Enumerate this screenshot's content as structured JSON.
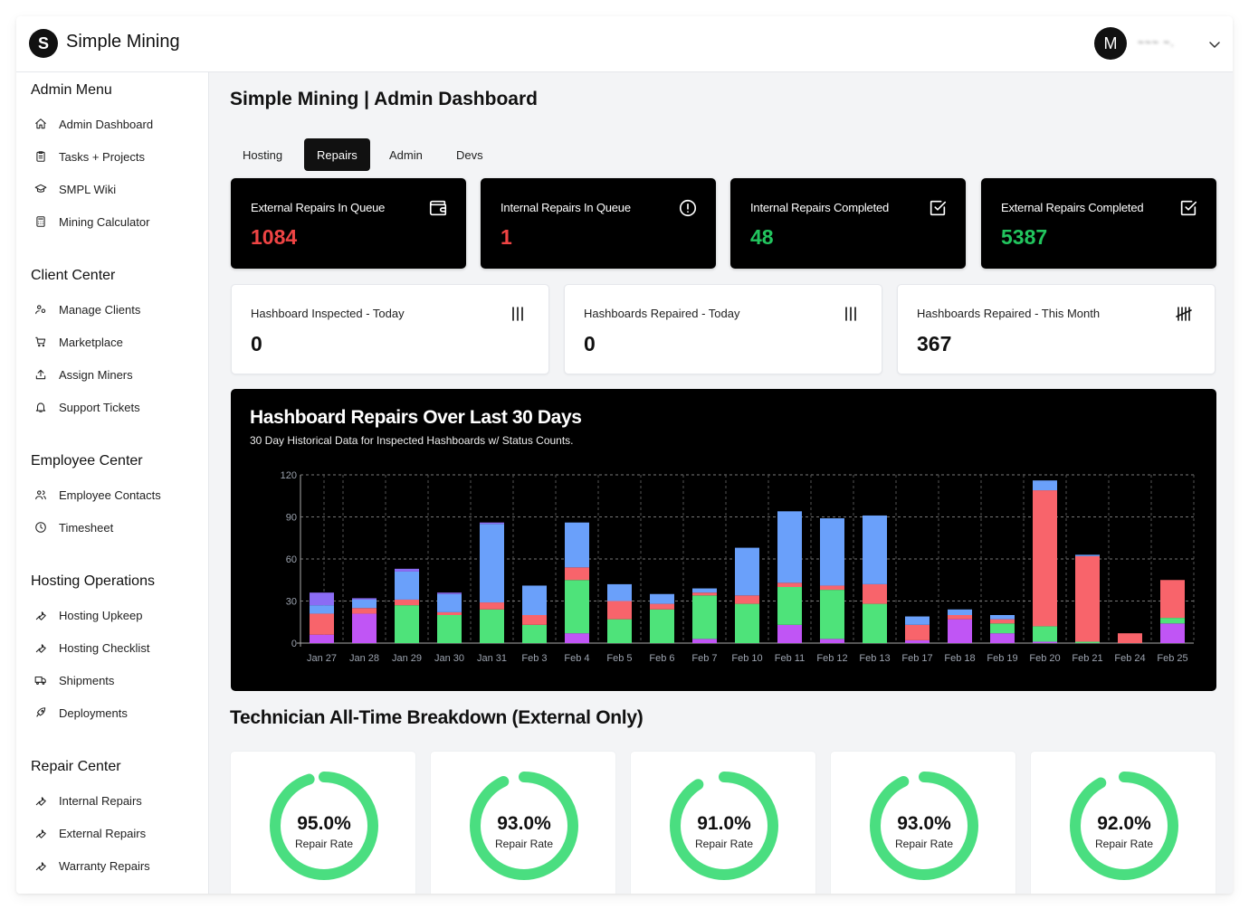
{
  "app": {
    "brand": "Simple Mining",
    "logo_letter": "S",
    "avatar_letter": "M",
    "username": "~~~ ~."
  },
  "sidebar": {
    "sections": [
      {
        "title": "Admin Menu",
        "items": [
          {
            "label": "Admin Dashboard",
            "icon": "home-icon"
          },
          {
            "label": "Tasks + Projects",
            "icon": "clipboard-icon"
          },
          {
            "label": "SMPL Wiki",
            "icon": "graduation-cap-icon"
          },
          {
            "label": "Mining Calculator",
            "icon": "calculator-icon"
          }
        ]
      },
      {
        "title": "Client Center",
        "items": [
          {
            "label": "Manage Clients",
            "icon": "users-icon"
          },
          {
            "label": "Marketplace",
            "icon": "cart-icon"
          },
          {
            "label": "Assign Miners",
            "icon": "upload-icon"
          },
          {
            "label": "Support Tickets",
            "icon": "bell-icon"
          }
        ]
      },
      {
        "title": "Employee Center",
        "items": [
          {
            "label": "Employee Contacts",
            "icon": "contacts-icon"
          },
          {
            "label": "Timesheet",
            "icon": "clock-icon"
          }
        ]
      },
      {
        "title": "Hosting Operations",
        "items": [
          {
            "label": "Hosting Upkeep",
            "icon": "wrench-icon"
          },
          {
            "label": "Hosting Checklist",
            "icon": "wrench-icon"
          },
          {
            "label": "Shipments",
            "icon": "truck-icon"
          },
          {
            "label": "Deployments",
            "icon": "rocket-icon"
          }
        ]
      },
      {
        "title": "Repair Center",
        "items": [
          {
            "label": "Internal Repairs",
            "icon": "wrench-icon"
          },
          {
            "label": "External Repairs",
            "icon": "wrench-icon"
          },
          {
            "label": "Warranty Repairs",
            "icon": "wrench-icon"
          }
        ]
      }
    ]
  },
  "main": {
    "title": "Simple Mining | Admin Dashboard",
    "tabs": [
      {
        "label": "Hosting",
        "active": false
      },
      {
        "label": "Repairs",
        "active": true
      },
      {
        "label": "Admin",
        "active": false
      },
      {
        "label": "Devs",
        "active": false
      }
    ],
    "dark_stats": [
      {
        "label": "External Repairs In Queue",
        "value": "1084",
        "color": "#ef4444",
        "icon": "wallet-icon"
      },
      {
        "label": "Internal Repairs In Queue",
        "value": "1",
        "color": "#ef4444",
        "icon": "alert-circle-icon"
      },
      {
        "label": "Internal Repairs Completed",
        "value": "48",
        "color": "#22c55e",
        "icon": "check-square-icon"
      },
      {
        "label": "External Repairs Completed",
        "value": "5387",
        "color": "#22c55e",
        "icon": "check-square-icon"
      }
    ],
    "light_stats": [
      {
        "label": "Hashboard Inspected - Today",
        "value": "0",
        "icon": "tally-icon"
      },
      {
        "label": "Hashboards Repaired - Today",
        "value": "0",
        "icon": "tally-icon"
      },
      {
        "label": "Hashboards Repaired - This Month",
        "value": "367",
        "icon": "tally-five-icon"
      }
    ],
    "section_title": "Technician All-Time Breakdown (External Only)",
    "technicians": [
      {
        "pct": "95.0%",
        "rate": 0.95,
        "label": "Repair Rate"
      },
      {
        "pct": "93.0%",
        "rate": 0.93,
        "label": "Repair Rate"
      },
      {
        "pct": "91.0%",
        "rate": 0.91,
        "label": "Repair Rate"
      },
      {
        "pct": "93.0%",
        "rate": 0.93,
        "label": "Repair Rate"
      },
      {
        "pct": "92.0%",
        "rate": 0.92,
        "label": "Repair Rate"
      }
    ],
    "ring_color": "#4ade80"
  },
  "chart_data": {
    "type": "bar",
    "stacked": true,
    "title": "Hashboard Repairs Over Last 30 Days",
    "subtitle": "30 Day Historical Data for Inspected Hashboards w/ Status Counts.",
    "ylim": [
      0,
      120
    ],
    "yticks": [
      0,
      30,
      60,
      90,
      120
    ],
    "grid": true,
    "categories": [
      "Jan 27",
      "Jan 28",
      "Jan 29",
      "Jan 30",
      "Jan 31",
      "Feb 3",
      "Feb 4",
      "Feb 5",
      "Feb 6",
      "Feb 7",
      "Feb 10",
      "Feb 11",
      "Feb 12",
      "Feb 13",
      "Feb 17",
      "Feb 18",
      "Feb 19",
      "Feb 20",
      "Feb 21",
      "Feb 24",
      "Feb 25"
    ],
    "series": [
      {
        "color": "#c055f5",
        "values": [
          6,
          21,
          0,
          0,
          0,
          0,
          7,
          0,
          0,
          3,
          0,
          13,
          3,
          0,
          2,
          17,
          7,
          1,
          0,
          0,
          14
        ]
      },
      {
        "color": "#4ee37a",
        "values": [
          0,
          0,
          27,
          20,
          24,
          13,
          38,
          17,
          24,
          31,
          28,
          27,
          35,
          28,
          0,
          0,
          7,
          11,
          1,
          0,
          4
        ]
      },
      {
        "color": "#f8646b",
        "values": [
          15,
          4,
          4,
          2,
          5,
          7,
          9,
          13,
          4,
          2,
          6,
          3,
          3,
          14,
          11,
          3,
          3,
          97,
          61,
          7,
          27
        ]
      },
      {
        "color": "#6aa0fa",
        "values": [
          6,
          6,
          20,
          13,
          56,
          21,
          32,
          12,
          7,
          3,
          34,
          51,
          48,
          49,
          6,
          4,
          3,
          7,
          1,
          0,
          0
        ]
      },
      {
        "color": "#8b6cf4",
        "values": [
          9,
          1,
          2,
          1,
          1,
          0,
          0,
          0,
          0,
          0,
          0,
          0,
          0,
          0,
          0,
          0,
          0,
          0,
          0,
          0,
          0
        ]
      }
    ]
  }
}
